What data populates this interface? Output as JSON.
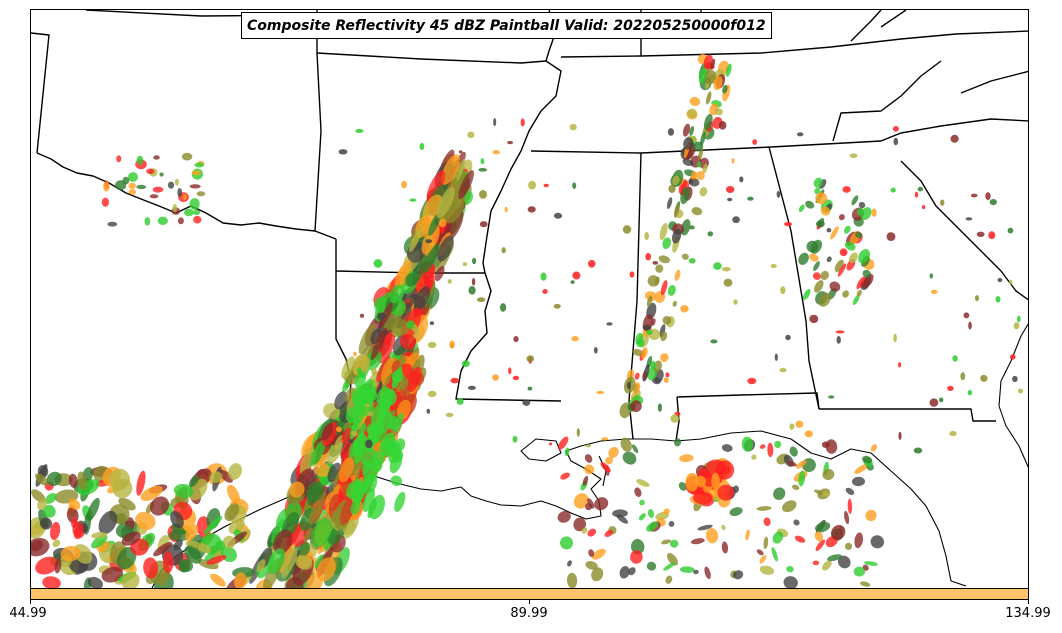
{
  "title": "Composite Reflectivity 45 dBZ Paintball Valid: 202205250000f012",
  "map": {
    "region": "Southern United States and Gulf of Mexico coast",
    "features": [
      "state-boundaries",
      "coastline",
      "reflectivity-paintball-blobs"
    ],
    "paintball_colors": [
      "#2ecc2e",
      "#8b8b2a",
      "#8b2a2a",
      "#444444",
      "#ff2020",
      "#ffa020",
      "#b5b542",
      "#2e7d2e"
    ]
  },
  "colorbar": {
    "color": "#ffc46b",
    "tick_labels": [
      "44.99",
      "89.99",
      "134.99"
    ],
    "range": [
      44.99,
      134.99
    ]
  }
}
